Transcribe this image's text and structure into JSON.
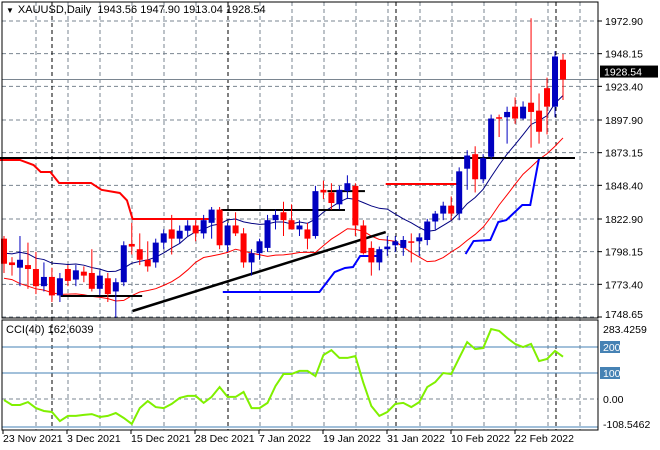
{
  "header": {
    "symbol": "XAUUSD,Daily",
    "open": "1943.56",
    "high": "1947.90",
    "low": "1913.04",
    "close": "1928.54"
  },
  "colors": {
    "bull": "#0000c0",
    "bear": "#ff0000",
    "cci": "#80f000",
    "ma": "#000080",
    "level": "#4682b4"
  },
  "chart_data": [
    {
      "type": "candlestick",
      "title": "XAUUSD,Daily",
      "ylim": [
        1748.65,
        1972.9
      ],
      "y_ticks": [
        "1972.90",
        "1948.15",
        "1923.40",
        "1897.90",
        "1873.15",
        "1848.40",
        "1822.90",
        "1798.15",
        "1773.40",
        "1748.65"
      ],
      "current_price": "1928.54",
      "x_tick_labels": [
        "23 Nov 2021",
        "3 Dec 2021",
        "15 Dec 2021",
        "28 Dec 2021",
        "7 Jan 2022",
        "19 Jan 2022",
        "31 Jan 2022",
        "10 Feb 2022",
        "22 Feb 2022"
      ],
      "x_tick_index": [
        0,
        8,
        16,
        24,
        32,
        40,
        48,
        56,
        64
      ],
      "ohlc": [
        [
          1808,
          1810,
          1782,
          1789
        ],
        [
          1790,
          1794,
          1780,
          1788
        ],
        [
          1786,
          1810,
          1772,
          1792
        ],
        [
          1788,
          1805,
          1770,
          1785
        ],
        [
          1785,
          1798,
          1766,
          1772
        ],
        [
          1772,
          1790,
          1768,
          1779
        ],
        [
          1779,
          1786,
          1760,
          1765
        ],
        [
          1765,
          1782,
          1760,
          1778
        ],
        [
          1785,
          1788,
          1772,
          1776
        ],
        [
          1777,
          1788,
          1772,
          1784
        ],
        [
          1783,
          1787,
          1775,
          1780
        ],
        [
          1782,
          1800,
          1768,
          1770
        ],
        [
          1770,
          1784,
          1765,
          1780
        ],
        [
          1778,
          1782,
          1760,
          1766
        ],
        [
          1768,
          1778,
          1748,
          1775
        ],
        [
          1775,
          1806,
          1772,
          1803
        ],
        [
          1804,
          1820,
          1796,
          1802
        ],
        [
          1800,
          1812,
          1788,
          1792
        ],
        [
          1792,
          1806,
          1783,
          1787
        ],
        [
          1790,
          1808,
          1786,
          1805
        ],
        [
          1805,
          1815,
          1800,
          1812
        ],
        [
          1815,
          1826,
          1796,
          1808
        ],
        [
          1808,
          1818,
          1804,
          1814
        ],
        [
          1814,
          1822,
          1810,
          1818
        ],
        [
          1818,
          1822,
          1806,
          1812
        ],
        [
          1812,
          1826,
          1808,
          1822
        ],
        [
          1820,
          1832,
          1808,
          1830
        ],
        [
          1830,
          1832,
          1800,
          1803
        ],
        [
          1803,
          1820,
          1798,
          1818
        ],
        [
          1818,
          1828,
          1810,
          1812
        ],
        [
          1812,
          1816,
          1786,
          1790
        ],
        [
          1790,
          1800,
          1780,
          1797
        ],
        [
          1797,
          1808,
          1792,
          1806
        ],
        [
          1801,
          1826,
          1798,
          1822
        ],
        [
          1822,
          1830,
          1815,
          1826
        ],
        [
          1828,
          1836,
          1810,
          1822
        ],
        [
          1822,
          1834,
          1816,
          1815
        ],
        [
          1815,
          1822,
          1810,
          1818
        ],
        [
          1815,
          1820,
          1800,
          1808
        ],
        [
          1810,
          1848,
          1808,
          1844
        ],
        [
          1845,
          1852,
          1838,
          1843
        ],
        [
          1843,
          1850,
          1830,
          1835
        ],
        [
          1834,
          1848,
          1830,
          1845
        ],
        [
          1844,
          1856,
          1838,
          1850
        ],
        [
          1848,
          1850,
          1810,
          1818
        ],
        [
          1818,
          1822,
          1796,
          1797
        ],
        [
          1801,
          1806,
          1780,
          1790
        ],
        [
          1790,
          1802,
          1784,
          1800
        ],
        [
          1800,
          1810,
          1795,
          1802
        ],
        [
          1803,
          1810,
          1798,
          1806
        ],
        [
          1801,
          1810,
          1795,
          1807
        ],
        [
          1806,
          1812,
          1790,
          1805
        ],
        [
          1806,
          1812,
          1795,
          1809
        ],
        [
          1807,
          1823,
          1803,
          1821
        ],
        [
          1821,
          1829,
          1815,
          1827
        ],
        [
          1827,
          1836,
          1822,
          1833
        ],
        [
          1833,
          1840,
          1822,
          1827
        ],
        [
          1827,
          1862,
          1822,
          1859
        ],
        [
          1861,
          1875,
          1845,
          1871
        ],
        [
          1872,
          1878,
          1843,
          1853
        ],
        [
          1853,
          1872,
          1850,
          1869
        ],
        [
          1870,
          1902,
          1868,
          1899
        ],
        [
          1900,
          1902,
          1885,
          1899
        ],
        [
          1900,
          1908,
          1880,
          1904
        ],
        [
          1908,
          1915,
          1895,
          1899
        ],
        [
          1899,
          1912,
          1898,
          1908
        ],
        [
          1911,
          1975,
          1877,
          1904
        ],
        [
          1905,
          1918,
          1880,
          1889
        ],
        [
          1922,
          1930,
          1887,
          1908
        ],
        [
          1908,
          1950,
          1900,
          1946
        ],
        [
          1943.56,
          1947.9,
          1913.04,
          1928.54
        ]
      ],
      "lines": {
        "resistance_red_1": [
          [
            -0.5,
            1867.6
          ],
          [
            2,
            1867.6
          ],
          [
            3.7,
            1863.8
          ],
          [
            4.6,
            1858.5
          ],
          [
            5.8,
            1858.5
          ],
          [
            6.9,
            1850.2
          ],
          [
            10.9,
            1850.2
          ],
          [
            12.2,
            1845
          ],
          [
            14.5,
            1842.6
          ],
          [
            15.4,
            1837
          ],
          [
            16.1,
            1822.9
          ],
          [
            26.3,
            1822.9
          ]
        ],
        "resistance_red_2": [
          [
            47.8,
            1849.4
          ],
          [
            56.8,
            1849.4
          ]
        ],
        "support_blue_1": [
          [
            27.4,
            1767.6
          ],
          [
            39.5,
            1767.6
          ],
          [
            41.4,
            1782.7
          ],
          [
            42.7,
            1785.8
          ],
          [
            43.7,
            1786.5
          ],
          [
            44.6,
            1794.9
          ],
          [
            46.8,
            1794.9
          ]
        ],
        "support_blue_2": [
          [
            57.8,
            1796.4
          ],
          [
            58.8,
            1806.2
          ],
          [
            60.9,
            1807
          ],
          [
            61.9,
            1820.6
          ],
          [
            62.9,
            1822.1
          ],
          [
            64.9,
            1833.5
          ],
          [
            65.9,
            1833.5
          ],
          [
            67,
            1869.1
          ],
          [
            71,
            1869.1
          ]
        ],
        "horizontal_black": [
          [
            -0.5,
            1869.1
          ],
          [
            71.5,
            1869.1
          ]
        ],
        "support_black": [
          [
            7.1,
            1764.6
          ],
          [
            17.3,
            1764.6
          ]
        ],
        "range_black_1": [
          [
            27.2,
            1829.7
          ],
          [
            42.7,
            1829.7
          ]
        ],
        "range_black_2": [
          [
            40.5,
            1844
          ],
          [
            45.2,
            1844
          ]
        ],
        "trendline_black": [
          [
            16.1,
            1753.2
          ],
          [
            47.8,
            1813
          ]
        ]
      }
    },
    {
      "type": "line",
      "title": "CCI(40)",
      "last_value": "162.6039",
      "ylim": [
        -108.5462,
        283.4259
      ],
      "y_ticks": [
        "283.4259",
        "200",
        "100",
        "0.00",
        "-108.5462"
      ],
      "levels": [
        200,
        100,
        -100
      ],
      "values": [
        -4,
        -23,
        -23,
        -12,
        -35,
        -46,
        -50,
        -85,
        -65,
        -65,
        -61,
        -58,
        -69,
        -65,
        -54,
        -73,
        -96,
        -35,
        -8,
        -31,
        -35,
        -19,
        4,
        12,
        12,
        -15,
        8,
        46,
        8,
        8,
        27,
        -35,
        -35,
        -15,
        50,
        96,
        96,
        108,
        108,
        88,
        169,
        188,
        158,
        158,
        165,
        62,
        -27,
        -65,
        -50,
        -19,
        -15,
        -31,
        -12,
        46,
        65,
        100,
        96,
        158,
        219,
        192,
        196,
        269,
        262,
        235,
        212,
        200,
        212,
        146,
        154,
        185,
        162.6
      ]
    }
  ]
}
